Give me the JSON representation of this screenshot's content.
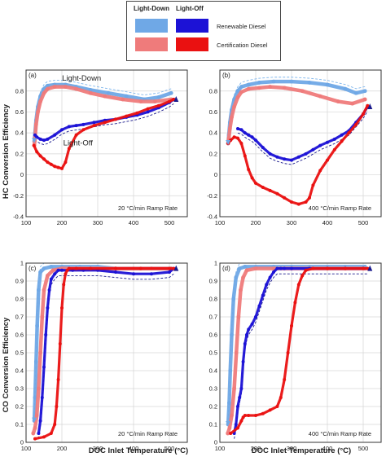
{
  "legend": {
    "header_lightdown": "Light-Down",
    "header_lightoff": "Light-Off",
    "rows": [
      {
        "label": "Renewable Diesel",
        "lightdown_color": "#6fa8e6",
        "lightoff_color": "#1c12d6"
      },
      {
        "label": "Certification Diesel",
        "lightdown_color": "#ef7b7b",
        "lightoff_color": "#ea1111"
      }
    ]
  },
  "labels": {
    "hc_ylabel": "HC Conversion Efficiency",
    "co_ylabel": "CO Conversion Efficiency",
    "xlabel": "DOC Inlet Temperature (°C)"
  },
  "chart_data": [
    {
      "type": "line",
      "panel": "(a)",
      "annotation": "20 °C/min Ramp Rate",
      "curve_labels": [
        "Light-Down",
        "Light-Off"
      ],
      "xlim": [
        100,
        550
      ],
      "ylim": [
        -0.4,
        1.0
      ],
      "xticks": [
        100,
        200,
        300,
        400,
        500
      ],
      "yticks": [
        -0.4,
        -0.2,
        0,
        0.2,
        0.4,
        0.6,
        0.8
      ],
      "grid": true,
      "series": [
        {
          "name": "Renewable Diesel",
          "phase": "Light-Down",
          "color": "#6fa8e6",
          "x": [
            505,
            470,
            430,
            380,
            330,
            280,
            240,
            210,
            180,
            160,
            150,
            140,
            133,
            128,
            125,
            123
          ],
          "y": [
            0.78,
            0.74,
            0.72,
            0.75,
            0.78,
            0.81,
            0.84,
            0.86,
            0.86,
            0.85,
            0.82,
            0.75,
            0.65,
            0.52,
            0.4,
            0.32
          ]
        },
        {
          "name": "Certification Diesel",
          "phase": "Light-Down",
          "color": "#ef7b7b",
          "x": [
            505,
            460,
            420,
            370,
            320,
            280,
            240,
            210,
            180,
            160,
            150,
            140,
            133,
            128,
            125,
            123
          ],
          "y": [
            0.72,
            0.7,
            0.7,
            0.72,
            0.75,
            0.78,
            0.82,
            0.84,
            0.84,
            0.82,
            0.78,
            0.7,
            0.6,
            0.48,
            0.35,
            0.28
          ]
        },
        {
          "name": "Renewable Diesel",
          "phase": "Light-Off",
          "color": "#1c12d6",
          "x": [
            125,
            130,
            140,
            150,
            160,
            180,
            200,
            220,
            240,
            260,
            290,
            320,
            350,
            380,
            410,
            440,
            470,
            500,
            512
          ],
          "y": [
            0.38,
            0.36,
            0.34,
            0.33,
            0.34,
            0.38,
            0.43,
            0.46,
            0.47,
            0.48,
            0.5,
            0.52,
            0.53,
            0.55,
            0.57,
            0.6,
            0.64,
            0.69,
            0.72
          ]
        },
        {
          "name": "Certification Diesel",
          "phase": "Light-Off",
          "color": "#ea1111",
          "x": [
            122,
            130,
            140,
            150,
            160,
            170,
            180,
            190,
            200,
            210,
            220,
            240,
            260,
            290,
            320,
            350,
            380,
            410,
            440,
            470,
            500,
            512
          ],
          "y": [
            0.28,
            0.22,
            0.18,
            0.15,
            0.12,
            0.1,
            0.08,
            0.07,
            0.06,
            0.12,
            0.25,
            0.38,
            0.43,
            0.47,
            0.5,
            0.53,
            0.56,
            0.59,
            0.63,
            0.66,
            0.7,
            0.72
          ]
        }
      ]
    },
    {
      "type": "line",
      "panel": "(b)",
      "annotation": "400 °C/min Ramp Rate",
      "xlim": [
        100,
        550
      ],
      "ylim": [
        -0.4,
        1.0
      ],
      "xticks": [
        100,
        200,
        300,
        400,
        500
      ],
      "yticks": [
        -0.4,
        -0.2,
        0,
        0.2,
        0.4,
        0.6,
        0.8
      ],
      "grid": true,
      "series": [
        {
          "name": "Renewable Diesel",
          "phase": "Light-Down",
          "color": "#6fa8e6",
          "x": [
            505,
            480,
            450,
            400,
            350,
            300,
            250,
            210,
            180,
            160,
            150,
            140,
            133,
            128,
            125,
            123
          ],
          "y": [
            0.8,
            0.78,
            0.82,
            0.86,
            0.88,
            0.89,
            0.89,
            0.88,
            0.86,
            0.84,
            0.8,
            0.72,
            0.62,
            0.5,
            0.38,
            0.3
          ]
        },
        {
          "name": "Certification Diesel",
          "phase": "Light-Down",
          "color": "#ef7b7b",
          "x": [
            505,
            470,
            430,
            380,
            330,
            280,
            240,
            210,
            180,
            160,
            150,
            140,
            133,
            128,
            125,
            123
          ],
          "y": [
            0.72,
            0.68,
            0.7,
            0.75,
            0.8,
            0.83,
            0.84,
            0.83,
            0.82,
            0.79,
            0.74,
            0.65,
            0.55,
            0.44,
            0.35,
            0.3
          ]
        },
        {
          "name": "Renewable Diesel",
          "phase": "Light-Off",
          "color": "#1c12d6",
          "x": [
            150,
            160,
            170,
            180,
            190,
            200,
            220,
            240,
            260,
            280,
            300,
            320,
            340,
            360,
            380,
            400,
            420,
            440,
            460,
            480,
            500,
            512
          ],
          "y": [
            0.44,
            0.43,
            0.4,
            0.38,
            0.36,
            0.33,
            0.26,
            0.2,
            0.17,
            0.15,
            0.14,
            0.17,
            0.2,
            0.24,
            0.28,
            0.31,
            0.34,
            0.38,
            0.42,
            0.5,
            0.58,
            0.65
          ]
        },
        {
          "name": "Certification Diesel",
          "phase": "Light-Off",
          "color": "#ea1111",
          "x": [
            123,
            130,
            140,
            150,
            160,
            170,
            180,
            190,
            200,
            220,
            240,
            260,
            280,
            300,
            320,
            340,
            350,
            360,
            380,
            400,
            420,
            440,
            460,
            480,
            500,
            512
          ],
          "y": [
            0.3,
            0.33,
            0.36,
            0.35,
            0.3,
            0.18,
            0.05,
            -0.03,
            -0.08,
            -0.12,
            -0.15,
            -0.18,
            -0.22,
            -0.26,
            -0.28,
            -0.26,
            -0.22,
            -0.1,
            0.04,
            0.14,
            0.24,
            0.32,
            0.4,
            0.48,
            0.58,
            0.66
          ]
        }
      ]
    },
    {
      "type": "line",
      "panel": "(c)",
      "annotation": "20 °C/min Ramp Rate",
      "xlim": [
        100,
        550
      ],
      "ylim": [
        0,
        1.0
      ],
      "xticks": [
        100,
        200,
        300,
        400,
        500
      ],
      "yticks": [
        0,
        0.1,
        0.2,
        0.3,
        0.4,
        0.5,
        0.6,
        0.7,
        0.8,
        0.9,
        1
      ],
      "grid": true,
      "series": [
        {
          "name": "Renewable Diesel",
          "phase": "Light-Down",
          "color": "#6fa8e6",
          "x": [
            505,
            450,
            400,
            350,
            300,
            250,
            200,
            170,
            150,
            140,
            135,
            131,
            128,
            125,
            123
          ],
          "y": [
            0.97,
            0.97,
            0.97,
            0.97,
            0.98,
            0.98,
            0.98,
            0.98,
            0.97,
            0.95,
            0.85,
            0.65,
            0.45,
            0.25,
            0.12
          ]
        },
        {
          "name": "Certification Diesel",
          "phase": "Light-Down",
          "color": "#ef7b7b",
          "x": [
            505,
            450,
            400,
            350,
            300,
            250,
            200,
            175,
            160,
            150,
            145,
            140,
            135,
            130,
            125,
            120
          ],
          "y": [
            0.97,
            0.97,
            0.97,
            0.97,
            0.97,
            0.97,
            0.97,
            0.96,
            0.93,
            0.85,
            0.7,
            0.5,
            0.3,
            0.15,
            0.08,
            0.05
          ]
        },
        {
          "name": "Renewable Diesel",
          "phase": "Light-Off",
          "color": "#1c12d6",
          "x": [
            135,
            140,
            145,
            150,
            155,
            160,
            165,
            170,
            180,
            190,
            200,
            230,
            260,
            300,
            350,
            400,
            450,
            500,
            512
          ],
          "y": [
            0.05,
            0.12,
            0.25,
            0.42,
            0.6,
            0.75,
            0.85,
            0.91,
            0.94,
            0.96,
            0.96,
            0.96,
            0.96,
            0.96,
            0.95,
            0.94,
            0.94,
            0.95,
            0.97
          ]
        },
        {
          "name": "Certification Diesel",
          "phase": "Light-Off",
          "color": "#ea1111",
          "x": [
            125,
            150,
            170,
            180,
            185,
            190,
            195,
            200,
            205,
            210,
            215,
            220,
            240,
            280,
            350,
            420,
            500,
            512
          ],
          "y": [
            0.02,
            0.03,
            0.05,
            0.1,
            0.2,
            0.35,
            0.55,
            0.75,
            0.88,
            0.94,
            0.96,
            0.97,
            0.97,
            0.97,
            0.97,
            0.97,
            0.97,
            0.97
          ]
        }
      ]
    },
    {
      "type": "line",
      "panel": "(d)",
      "annotation": "400 °C/min Ramp Rate",
      "xlim": [
        100,
        550
      ],
      "ylim": [
        0,
        1.0
      ],
      "xticks": [
        100,
        200,
        300,
        400,
        500
      ],
      "yticks": [
        0,
        0.1,
        0.2,
        0.3,
        0.4,
        0.5,
        0.6,
        0.7,
        0.8,
        0.9,
        1
      ],
      "grid": true,
      "series": [
        {
          "name": "Renewable Diesel",
          "phase": "Light-Down",
          "color": "#6fa8e6",
          "x": [
            505,
            450,
            400,
            350,
            300,
            250,
            200,
            170,
            155,
            145,
            138,
            133,
            129,
            126,
            123
          ],
          "y": [
            0.98,
            0.98,
            0.98,
            0.98,
            0.98,
            0.98,
            0.98,
            0.98,
            0.97,
            0.92,
            0.8,
            0.6,
            0.4,
            0.22,
            0.1
          ]
        },
        {
          "name": "Certification Diesel",
          "phase": "Light-Down",
          "color": "#ef7b7b",
          "x": [
            505,
            450,
            400,
            350,
            300,
            250,
            200,
            175,
            165,
            158,
            152,
            146,
            140,
            133,
            127,
            122
          ],
          "y": [
            0.97,
            0.97,
            0.97,
            0.97,
            0.97,
            0.97,
            0.97,
            0.96,
            0.92,
            0.85,
            0.7,
            0.5,
            0.3,
            0.15,
            0.08,
            0.05
          ]
        },
        {
          "name": "Renewable Diesel",
          "phase": "Light-Off",
          "color": "#1c12d6",
          "x": [
            140,
            145,
            150,
            155,
            160,
            165,
            170,
            175,
            180,
            190,
            200,
            210,
            220,
            230,
            240,
            250,
            260,
            270,
            280,
            300,
            350,
            400,
            450,
            500,
            512
          ],
          "y": [
            0.05,
            0.1,
            0.2,
            0.25,
            0.3,
            0.45,
            0.55,
            0.6,
            0.63,
            0.66,
            0.7,
            0.76,
            0.82,
            0.88,
            0.92,
            0.95,
            0.97,
            0.97,
            0.97,
            0.97,
            0.97,
            0.97,
            0.97,
            0.97,
            0.97
          ]
        },
        {
          "name": "Certification Diesel",
          "phase": "Light-Off",
          "color": "#ea1111",
          "x": [
            130,
            150,
            160,
            165,
            170,
            180,
            200,
            220,
            240,
            260,
            270,
            280,
            290,
            300,
            310,
            320,
            330,
            340,
            360,
            400,
            450,
            500,
            512
          ],
          "y": [
            0.05,
            0.08,
            0.12,
            0.14,
            0.15,
            0.15,
            0.15,
            0.16,
            0.18,
            0.2,
            0.25,
            0.35,
            0.5,
            0.65,
            0.78,
            0.88,
            0.93,
            0.96,
            0.97,
            0.97,
            0.97,
            0.97,
            0.97
          ]
        }
      ]
    }
  ]
}
